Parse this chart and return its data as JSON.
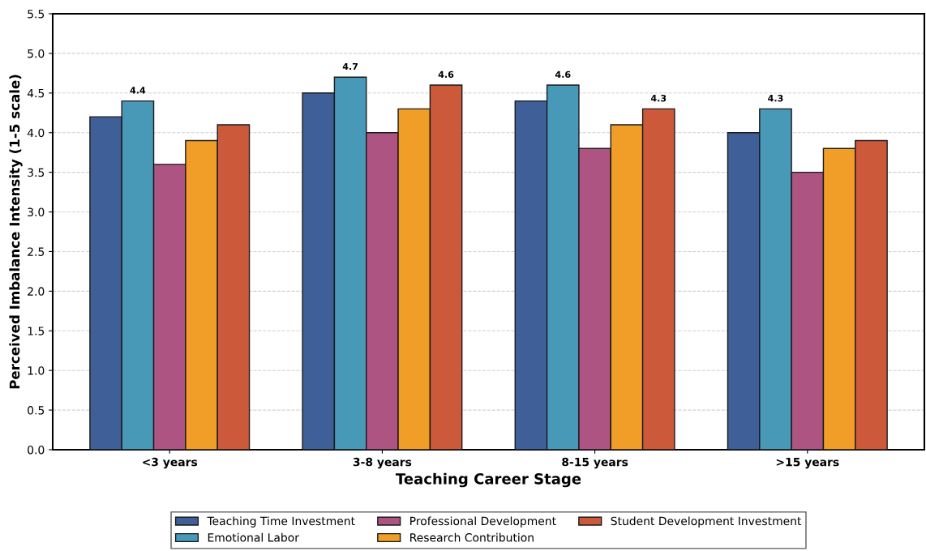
{
  "chart_data": {
    "type": "bar",
    "xlabel": "Teaching Career Stage",
    "ylabel": "Perceived Imbalance Intensity (1-5 scale)",
    "categories": [
      "<3 years",
      "3-8 years",
      "8-15 years",
      ">15 years"
    ],
    "series": [
      {
        "name": "Teaching Time Investment",
        "color": "#3f5f99",
        "values": [
          4.2,
          4.5,
          4.4,
          4.0
        ],
        "value_labels": [
          null,
          null,
          null,
          null
        ]
      },
      {
        "name": "Emotional Labor",
        "color": "#4898b8",
        "values": [
          4.4,
          4.7,
          4.6,
          4.3
        ],
        "value_labels": [
          "4.4",
          "4.7",
          "4.6",
          "4.3"
        ]
      },
      {
        "name": "Professional Development",
        "color": "#ad5482",
        "values": [
          3.6,
          4.0,
          3.8,
          3.5
        ],
        "value_labels": [
          null,
          null,
          null,
          null
        ]
      },
      {
        "name": "Research Contribution",
        "color": "#f09e28",
        "values": [
          3.9,
          4.3,
          4.1,
          3.8
        ],
        "value_labels": [
          null,
          null,
          null,
          null
        ]
      },
      {
        "name": "Student Development Investment",
        "color": "#cc5a3a",
        "values": [
          4.1,
          4.6,
          4.3,
          3.9
        ],
        "value_labels": [
          null,
          "4.6",
          "4.3",
          null
        ]
      }
    ],
    "ylim": [
      0,
      5.5
    ],
    "yticks": [
      "0.0",
      "0.5",
      "1.0",
      "1.5",
      "2.0",
      "2.5",
      "3.0",
      "3.5",
      "4.0",
      "4.5",
      "5.0",
      "5.5"
    ],
    "grid": "y",
    "legend": "bottom"
  }
}
